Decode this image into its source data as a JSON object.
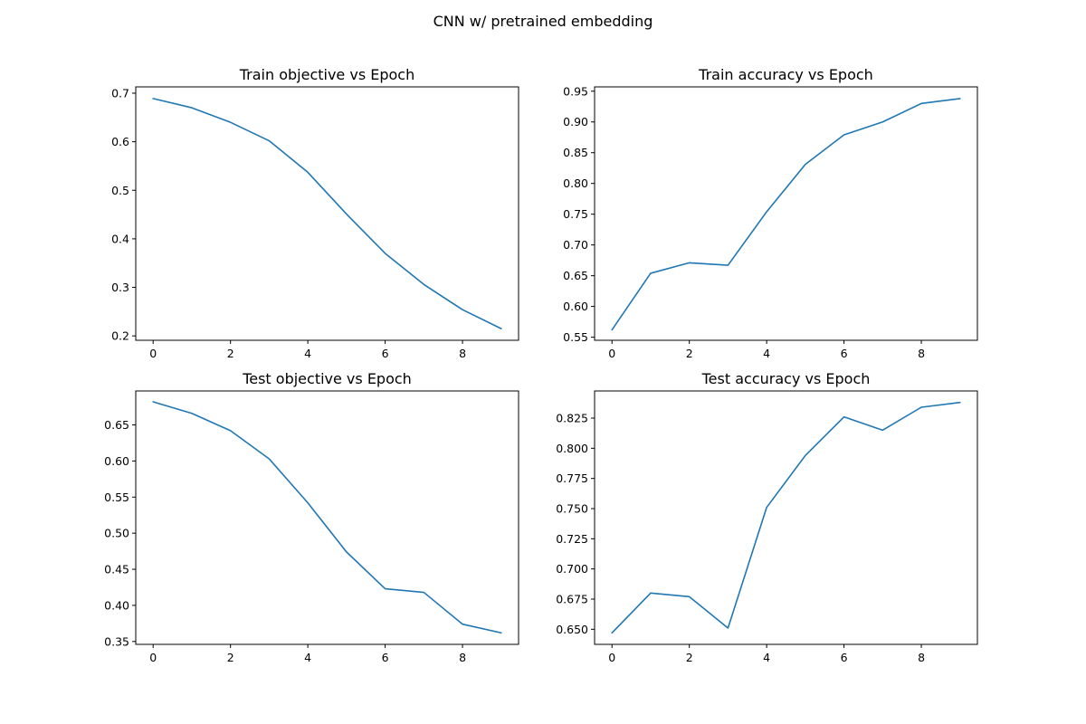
{
  "figure": {
    "title": "CNN w/ pretrained embedding",
    "line_color": "#1f77b4"
  },
  "chart_data": [
    {
      "type": "line",
      "title": "Train objective vs Epoch",
      "xlabel": "",
      "ylabel": "",
      "x": [
        0,
        1,
        2,
        3,
        4,
        5,
        6,
        7,
        8,
        9
      ],
      "series": [
        {
          "values": [
            0.689,
            0.67,
            0.64,
            0.602,
            0.537,
            0.451,
            0.37,
            0.306,
            0.254,
            0.215
          ]
        }
      ],
      "xlim": [
        -0.45,
        9.45
      ],
      "ylim": [
        0.191,
        0.713
      ],
      "xticks": [
        0,
        2,
        4,
        6,
        8
      ],
      "xtick_labels": [
        "0",
        "2",
        "4",
        "6",
        "8"
      ],
      "yticks": [
        0.2,
        0.3,
        0.4,
        0.5,
        0.6,
        0.7
      ],
      "ytick_labels": [
        "0.2",
        "0.3",
        "0.4",
        "0.5",
        "0.6",
        "0.7"
      ],
      "grid": false,
      "legend": false
    },
    {
      "type": "line",
      "title": "Train accuracy vs Epoch",
      "xlabel": "",
      "ylabel": "",
      "x": [
        0,
        1,
        2,
        3,
        4,
        5,
        6,
        7,
        8,
        9
      ],
      "series": [
        {
          "values": [
            0.562,
            0.654,
            0.671,
            0.667,
            0.754,
            0.831,
            0.879,
            0.9,
            0.93,
            0.938
          ]
        }
      ],
      "xlim": [
        -0.45,
        9.45
      ],
      "ylim": [
        0.545,
        0.957
      ],
      "xticks": [
        0,
        2,
        4,
        6,
        8
      ],
      "xtick_labels": [
        "0",
        "2",
        "4",
        "6",
        "8"
      ],
      "yticks": [
        0.55,
        0.6,
        0.65,
        0.7,
        0.75,
        0.8,
        0.85,
        0.9,
        0.95
      ],
      "ytick_labels": [
        "0.55",
        "0.60",
        "0.65",
        "0.70",
        "0.75",
        "0.80",
        "0.85",
        "0.90",
        "0.95"
      ],
      "grid": false,
      "legend": false
    },
    {
      "type": "line",
      "title": "Test objective vs Epoch",
      "xlabel": "",
      "ylabel": "",
      "x": [
        0,
        1,
        2,
        3,
        4,
        5,
        6,
        7,
        8,
        9
      ],
      "series": [
        {
          "values": [
            0.682,
            0.666,
            0.642,
            0.603,
            0.542,
            0.474,
            0.423,
            0.418,
            0.374,
            0.362
          ]
        }
      ],
      "xlim": [
        -0.45,
        9.45
      ],
      "ylim": [
        0.346,
        0.697
      ],
      "xticks": [
        0,
        2,
        4,
        6,
        8
      ],
      "xtick_labels": [
        "0",
        "2",
        "4",
        "6",
        "8"
      ],
      "yticks": [
        0.35,
        0.4,
        0.45,
        0.5,
        0.55,
        0.6,
        0.65
      ],
      "ytick_labels": [
        "0.35",
        "0.40",
        "0.45",
        "0.50",
        "0.55",
        "0.60",
        "0.65"
      ],
      "grid": false,
      "legend": false
    },
    {
      "type": "line",
      "title": "Test accuracy vs Epoch",
      "xlabel": "",
      "ylabel": "",
      "x": [
        0,
        1,
        2,
        3,
        4,
        5,
        6,
        7,
        8,
        9
      ],
      "series": [
        {
          "values": [
            0.647,
            0.68,
            0.677,
            0.651,
            0.751,
            0.794,
            0.826,
            0.815,
            0.834,
            0.838
          ]
        }
      ],
      "xlim": [
        -0.45,
        9.45
      ],
      "ylim": [
        0.6375,
        0.8475
      ],
      "xticks": [
        0,
        2,
        4,
        6,
        8
      ],
      "xtick_labels": [
        "0",
        "2",
        "4",
        "6",
        "8"
      ],
      "yticks": [
        0.65,
        0.675,
        0.7,
        0.725,
        0.75,
        0.775,
        0.8,
        0.825
      ],
      "ytick_labels": [
        "0.650",
        "0.675",
        "0.700",
        "0.725",
        "0.750",
        "0.775",
        "0.800",
        "0.825"
      ],
      "grid": false,
      "legend": false
    }
  ]
}
